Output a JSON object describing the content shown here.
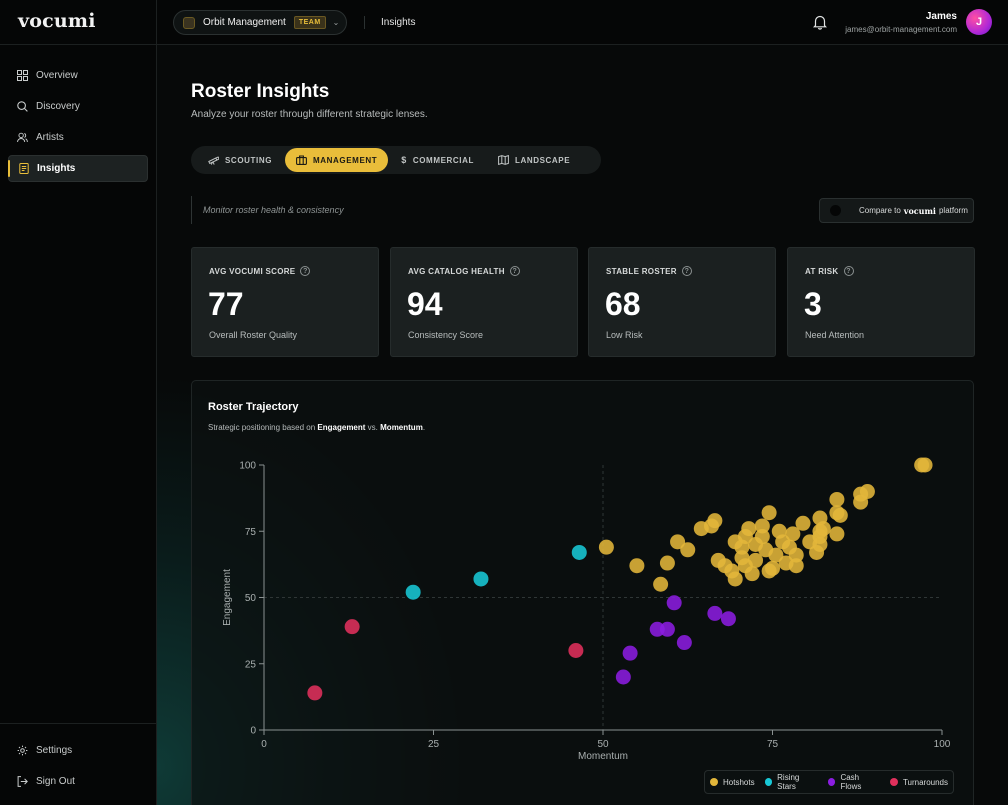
{
  "app": {
    "logo": "vocumi"
  },
  "sidebar": {
    "items": [
      {
        "label": "Overview",
        "icon": "grid-icon",
        "active": false
      },
      {
        "label": "Discovery",
        "icon": "search-icon",
        "active": false
      },
      {
        "label": "Artists",
        "icon": "users-icon",
        "active": false
      },
      {
        "label": "Insights",
        "icon": "document-icon",
        "active": true
      }
    ],
    "bottom": [
      {
        "label": "Settings",
        "icon": "gear-icon"
      },
      {
        "label": "Sign Out",
        "icon": "sign-out-icon"
      }
    ]
  },
  "topbar": {
    "team_name": "Orbit Management",
    "team_badge": "TEAM",
    "breadcrumb": "Insights",
    "user_name": "James",
    "user_email": "james@orbit-management.com",
    "avatar_initial": "J"
  },
  "page": {
    "title": "Roster Insights",
    "subtitle": "Analyze your roster through different strategic lenses."
  },
  "lenses": {
    "tabs": [
      {
        "label": "SCOUTING",
        "icon": "telescope-icon",
        "active": false
      },
      {
        "label": "MANAGEMENT",
        "icon": "briefcase-icon",
        "active": true
      },
      {
        "label": "COMMERCIAL",
        "icon": "dollar-icon",
        "active": false
      },
      {
        "label": "LANDSCAPE",
        "icon": "map-icon",
        "active": false
      }
    ],
    "description": "Monitor roster health & consistency",
    "compare_prefix": "Compare to",
    "compare_brand": "vocumi",
    "compare_suffix": "platform",
    "compare_enabled": false
  },
  "stats": [
    {
      "label": "AVG VOCUMI SCORE",
      "value": "77",
      "caption": "Overall Roster Quality"
    },
    {
      "label": "AVG CATALOG HEALTH",
      "value": "94",
      "caption": "Consistency Score"
    },
    {
      "label": "STABLE ROSTER",
      "value": "68",
      "caption": "Low Risk"
    },
    {
      "label": "AT RISK",
      "value": "3",
      "caption": "Need Attention"
    }
  ],
  "chart": {
    "title": "Roster Trajectory",
    "subtitle_prefix": "Strategic positioning based on",
    "subtitle_x": "Engagement",
    "subtitle_mid": "vs.",
    "subtitle_y": "Momentum",
    "subtitle_end": "."
  },
  "chart_data": {
    "type": "scatter",
    "xlabel": "Momentum",
    "ylabel": "Engagement",
    "xlim": [
      0,
      100
    ],
    "ylim": [
      0,
      100
    ],
    "xticks": [
      0,
      25,
      50,
      75,
      100
    ],
    "yticks": [
      0,
      25,
      50,
      75,
      100
    ],
    "reference_lines": {
      "x": 50,
      "y": 50
    },
    "grid": false,
    "legend_position": "bottom-right",
    "series": [
      {
        "name": "Hotshots",
        "color": "#e2b63a",
        "points": [
          [
            50.5,
            69
          ],
          [
            55,
            62
          ],
          [
            58.5,
            55
          ],
          [
            59.5,
            63
          ],
          [
            61,
            71
          ],
          [
            62.5,
            68
          ],
          [
            64.5,
            76
          ],
          [
            66,
            77
          ],
          [
            66.5,
            79
          ],
          [
            67,
            64
          ],
          [
            68,
            62
          ],
          [
            69,
            60
          ],
          [
            69.5,
            57
          ],
          [
            69.5,
            71
          ],
          [
            70.5,
            65
          ],
          [
            70.5,
            69
          ],
          [
            71,
            73
          ],
          [
            71,
            62
          ],
          [
            71.5,
            76
          ],
          [
            72,
            59
          ],
          [
            72.5,
            64
          ],
          [
            72.5,
            70
          ],
          [
            73.5,
            77
          ],
          [
            73.5,
            73
          ],
          [
            74,
            68
          ],
          [
            74.5,
            82
          ],
          [
            74.5,
            60
          ],
          [
            75,
            61
          ],
          [
            75.5,
            66
          ],
          [
            76,
            75
          ],
          [
            76.5,
            71
          ],
          [
            77,
            63
          ],
          [
            77.5,
            69
          ],
          [
            78,
            74
          ],
          [
            78.5,
            62
          ],
          [
            78.5,
            66
          ],
          [
            79.5,
            78
          ],
          [
            80.5,
            71
          ],
          [
            81.5,
            67
          ],
          [
            82,
            70
          ],
          [
            82,
            73
          ],
          [
            82,
            75
          ],
          [
            82.5,
            76
          ],
          [
            82,
            80
          ],
          [
            84.5,
            74
          ],
          [
            84.5,
            82
          ],
          [
            85,
            81
          ],
          [
            84.5,
            87
          ],
          [
            88,
            86
          ],
          [
            88,
            89
          ],
          [
            89,
            90
          ],
          [
            97,
            100
          ],
          [
            97.5,
            100
          ]
        ]
      },
      {
        "name": "Rising Stars",
        "color": "#18c8d6",
        "points": [
          [
            22,
            52
          ],
          [
            32,
            57
          ],
          [
            46.5,
            67
          ]
        ]
      },
      {
        "name": "Cash Flows",
        "color": "#8b1de0",
        "points": [
          [
            53,
            20
          ],
          [
            54,
            29
          ],
          [
            58,
            38
          ],
          [
            59.5,
            38
          ],
          [
            60.5,
            48
          ],
          [
            62,
            33
          ],
          [
            66.5,
            44
          ],
          [
            68.5,
            42
          ]
        ]
      },
      {
        "name": "Turnarounds",
        "color": "#e0305c",
        "points": [
          [
            7.5,
            14
          ],
          [
            13,
            39
          ],
          [
            46,
            30
          ]
        ]
      }
    ]
  }
}
